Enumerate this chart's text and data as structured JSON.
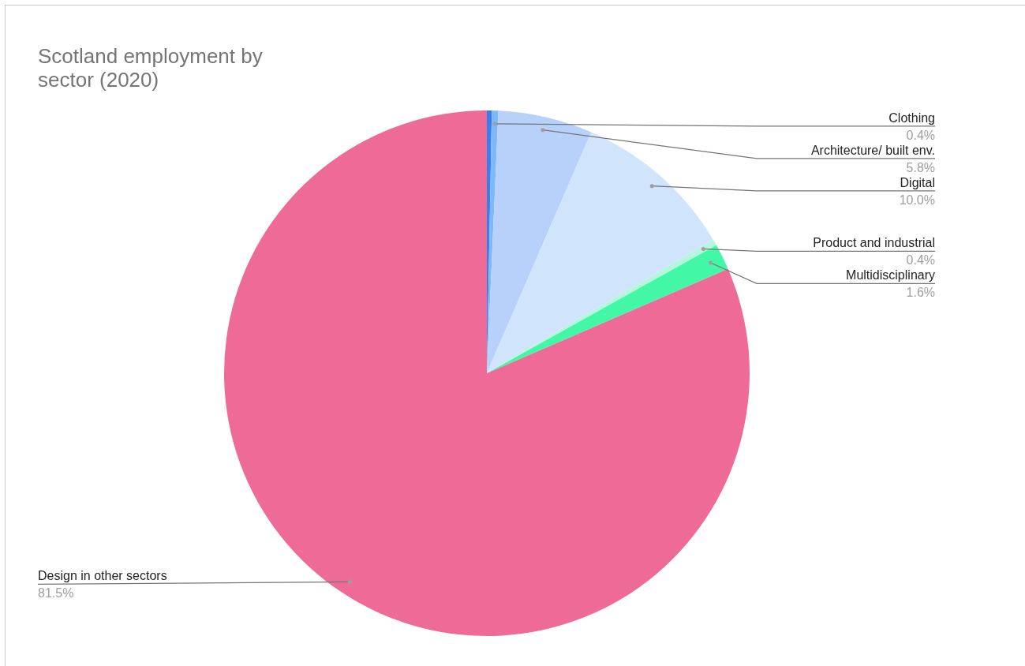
{
  "chart_data": {
    "type": "pie",
    "title": "Scotland employment by sector (2020)",
    "categories": [
      null,
      "Clothing",
      "Architecture/ built env.",
      "Digital",
      "Product and industrial",
      "Multidisciplinary",
      "Design in other sectors"
    ],
    "values": [
      0.3,
      0.4,
      5.8,
      10.0,
      0.4,
      1.6,
      81.5
    ],
    "colors": [
      "#3d7de8",
      "#7db9fa",
      "#b7d1fa",
      "#d0e5fc",
      "#b5f7dd",
      "#42f8a6",
      "#ee6b98"
    ],
    "value_labels": [
      null,
      "0.4%",
      "5.8%",
      "10.0%",
      "0.4%",
      "1.6%",
      "81.5%"
    ]
  }
}
